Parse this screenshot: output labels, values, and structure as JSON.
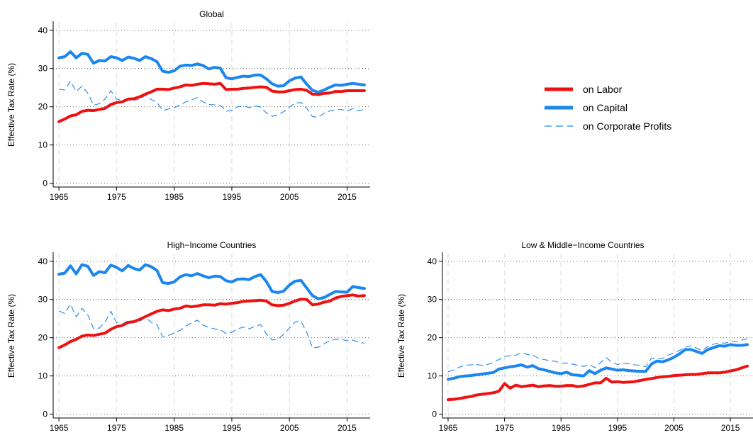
{
  "chart_data": [
    {
      "type": "line",
      "title": "Global",
      "ylabel": "Effective Tax Rate (%)",
      "xlabel": "",
      "xlim": [
        1964,
        2019
      ],
      "ylim": [
        -1,
        42
      ],
      "xticks": [
        1965,
        1975,
        1985,
        1995,
        2005,
        2015
      ],
      "yticks": [
        0,
        10,
        20,
        30,
        40
      ],
      "grid": true,
      "x": [
        1965,
        1966,
        1967,
        1968,
        1969,
        1970,
        1971,
        1972,
        1973,
        1974,
        1975,
        1976,
        1977,
        1978,
        1979,
        1980,
        1981,
        1982,
        1983,
        1984,
        1985,
        1986,
        1987,
        1988,
        1989,
        1990,
        1991,
        1992,
        1993,
        1994,
        1995,
        1996,
        1997,
        1998,
        1999,
        2000,
        2001,
        2002,
        2003,
        2004,
        2005,
        2006,
        2007,
        2008,
        2009,
        2010,
        2011,
        2012,
        2013,
        2014,
        2015,
        2016,
        2017,
        2018
      ],
      "series": [
        {
          "name": "on Labor",
          "color": "#ee1111",
          "style": "solid",
          "values": [
            16.1,
            16.8,
            17.6,
            17.9,
            18.8,
            19.1,
            19.0,
            19.3,
            19.6,
            20.6,
            21.1,
            21.3,
            22.0,
            22.1,
            22.6,
            23.3,
            23.9,
            24.6,
            24.6,
            24.5,
            24.9,
            25.2,
            25.7,
            25.6,
            25.9,
            26.1,
            26.0,
            25.9,
            26.1,
            24.5,
            24.6,
            24.6,
            24.8,
            24.9,
            25.1,
            25.2,
            25.1,
            24.1,
            23.9,
            23.9,
            24.2,
            24.5,
            24.6,
            24.3,
            23.3,
            23.2,
            23.5,
            23.6,
            24.0,
            24.0,
            24.2,
            24.2,
            24.2,
            24.2
          ]
        },
        {
          "name": "on Capital",
          "color": "#1a86ee",
          "style": "solid",
          "values": [
            32.8,
            33.1,
            34.4,
            32.8,
            34.0,
            33.7,
            31.4,
            32.1,
            32.0,
            33.1,
            32.8,
            32.1,
            33.0,
            32.7,
            32.1,
            33.1,
            32.6,
            31.8,
            29.3,
            29.0,
            29.4,
            30.6,
            30.9,
            30.8,
            31.2,
            30.8,
            29.9,
            30.3,
            30.1,
            27.6,
            27.3,
            27.7,
            28.0,
            27.9,
            28.3,
            28.3,
            27.3,
            26.0,
            25.4,
            25.5,
            26.8,
            27.5,
            27.8,
            25.9,
            24.3,
            23.8,
            24.4,
            25.1,
            25.7,
            25.6,
            25.9,
            26.1,
            25.9,
            25.7
          ]
        },
        {
          "name": "on Corporate Profits",
          "color": "#1a86ee",
          "style": "dashed",
          "values": [
            24.6,
            24.4,
            26.7,
            24.0,
            25.4,
            23.6,
            20.4,
            20.8,
            22.0,
            24.2,
            22.0,
            21.6,
            22.3,
            21.7,
            21.9,
            23.0,
            21.9,
            21.2,
            19.0,
            19.4,
            19.8,
            20.4,
            21.3,
            21.8,
            22.4,
            21.3,
            20.6,
            20.5,
            20.4,
            18.8,
            19.1,
            20.0,
            20.2,
            19.8,
            20.2,
            19.9,
            18.4,
            17.5,
            17.9,
            18.7,
            19.9,
            21.0,
            21.1,
            19.6,
            17.4,
            17.3,
            18.3,
            18.9,
            19.2,
            19.3,
            18.9,
            19.5,
            19.0,
            19.3
          ]
        }
      ]
    },
    {
      "type": "line",
      "title": "High−Income Countries",
      "ylabel": "Effective Tax Rate (%)",
      "xlabel": "",
      "xlim": [
        1964,
        2019
      ],
      "ylim": [
        -1,
        42
      ],
      "xticks": [
        1965,
        1975,
        1985,
        1995,
        2005,
        2015
      ],
      "yticks": [
        0,
        10,
        20,
        30,
        40
      ],
      "grid": true,
      "x": [
        1965,
        1966,
        1967,
        1968,
        1969,
        1970,
        1971,
        1972,
        1973,
        1974,
        1975,
        1976,
        1977,
        1978,
        1979,
        1980,
        1981,
        1982,
        1983,
        1984,
        1985,
        1986,
        1987,
        1988,
        1989,
        1990,
        1991,
        1992,
        1993,
        1994,
        1995,
        1996,
        1997,
        1998,
        1999,
        2000,
        2001,
        2002,
        2003,
        2004,
        2005,
        2006,
        2007,
        2008,
        2009,
        2010,
        2011,
        2012,
        2013,
        2014,
        2015,
        2016,
        2017,
        2018
      ],
      "series": [
        {
          "name": "on Labor",
          "color": "#ee1111",
          "style": "solid",
          "values": [
            17.4,
            18.1,
            19.0,
            19.6,
            20.4,
            20.7,
            20.6,
            20.9,
            21.2,
            22.2,
            22.9,
            23.2,
            24.0,
            24.2,
            24.8,
            25.5,
            26.2,
            26.9,
            27.3,
            27.1,
            27.5,
            27.7,
            28.3,
            28.1,
            28.3,
            28.6,
            28.6,
            28.5,
            28.9,
            28.8,
            29.0,
            29.2,
            29.5,
            29.6,
            29.7,
            29.8,
            29.6,
            28.6,
            28.4,
            28.5,
            29.0,
            29.6,
            30.1,
            30.0,
            28.6,
            28.8,
            29.3,
            29.6,
            30.4,
            30.8,
            31.0,
            31.2,
            30.9,
            31.0
          ]
        },
        {
          "name": "on Capital",
          "color": "#1a86ee",
          "style": "solid",
          "values": [
            36.6,
            36.9,
            38.8,
            36.7,
            39.1,
            38.7,
            36.3,
            37.3,
            37.0,
            39.0,
            38.4,
            37.5,
            38.9,
            38.1,
            37.7,
            39.1,
            38.6,
            37.6,
            34.4,
            34.2,
            34.6,
            35.9,
            36.5,
            36.2,
            36.8,
            36.2,
            35.7,
            36.1,
            36.0,
            34.9,
            34.6,
            35.3,
            35.4,
            35.2,
            36.0,
            36.5,
            34.7,
            32.1,
            31.8,
            32.2,
            33.8,
            34.8,
            35.0,
            33.0,
            31.0,
            30.2,
            30.5,
            31.3,
            32.1,
            32.0,
            31.9,
            33.4,
            33.1,
            32.9
          ]
        },
        {
          "name": "on Corporate Profits",
          "color": "#1a86ee",
          "style": "dashed",
          "values": [
            27.0,
            26.3,
            28.8,
            25.5,
            27.7,
            26.0,
            22.4,
            22.5,
            24.1,
            26.9,
            24.0,
            23.6,
            24.5,
            24.0,
            24.2,
            25.4,
            24.0,
            23.4,
            20.3,
            20.6,
            21.3,
            21.9,
            23.0,
            23.9,
            24.6,
            23.3,
            22.7,
            22.3,
            22.1,
            21.1,
            21.4,
            22.3,
            22.8,
            22.3,
            23.0,
            23.4,
            21.0,
            19.4,
            19.6,
            20.9,
            22.5,
            24.1,
            24.3,
            21.4,
            17.4,
            17.5,
            18.4,
            19.2,
            19.6,
            19.6,
            19.2,
            19.4,
            18.8,
            18.6
          ]
        }
      ]
    },
    {
      "type": "line",
      "title": "Low & Middle−Income Countries",
      "ylabel": "Effective Tax Rate (%)",
      "xlabel": "",
      "xlim": [
        1964,
        2019
      ],
      "ylim": [
        -1,
        42
      ],
      "xticks": [
        1965,
        1975,
        1985,
        1995,
        2005,
        2015
      ],
      "yticks": [
        0,
        10,
        20,
        30,
        40
      ],
      "grid": true,
      "x": [
        1965,
        1966,
        1967,
        1968,
        1969,
        1970,
        1971,
        1972,
        1973,
        1974,
        1975,
        1976,
        1977,
        1978,
        1979,
        1980,
        1981,
        1982,
        1983,
        1984,
        1985,
        1986,
        1987,
        1988,
        1989,
        1990,
        1991,
        1992,
        1993,
        1994,
        1995,
        1996,
        1997,
        1998,
        1999,
        2000,
        2001,
        2002,
        2003,
        2004,
        2005,
        2006,
        2007,
        2008,
        2009,
        2010,
        2011,
        2012,
        2013,
        2014,
        2015,
        2016,
        2017,
        2018
      ],
      "series": [
        {
          "name": "on Labor",
          "color": "#ee1111",
          "style": "solid",
          "values": [
            3.8,
            3.9,
            4.1,
            4.4,
            4.6,
            5.0,
            5.2,
            5.4,
            5.6,
            6.0,
            8.0,
            6.8,
            7.6,
            7.2,
            7.4,
            7.6,
            7.2,
            7.4,
            7.5,
            7.3,
            7.3,
            7.5,
            7.5,
            7.2,
            7.4,
            7.8,
            8.2,
            8.2,
            9.4,
            8.4,
            8.5,
            8.3,
            8.4,
            8.5,
            8.8,
            9.1,
            9.3,
            9.6,
            9.8,
            9.9,
            10.1,
            10.2,
            10.3,
            10.4,
            10.4,
            10.6,
            10.8,
            10.8,
            10.8,
            11.0,
            11.3,
            11.6,
            12.1,
            12.6
          ]
        },
        {
          "name": "on Capital",
          "color": "#1a86ee",
          "style": "solid",
          "values": [
            9.1,
            9.4,
            9.8,
            10.0,
            10.1,
            10.3,
            10.5,
            10.7,
            10.9,
            11.8,
            12.1,
            12.4,
            12.6,
            12.9,
            12.3,
            12.7,
            11.9,
            11.6,
            11.2,
            10.8,
            10.6,
            11.0,
            10.3,
            10.2,
            10.0,
            11.4,
            10.6,
            11.5,
            12.1,
            11.8,
            11.5,
            11.6,
            11.4,
            11.3,
            11.2,
            11.2,
            13.1,
            13.9,
            13.7,
            14.2,
            14.9,
            15.8,
            16.9,
            16.9,
            16.4,
            15.9,
            16.9,
            17.4,
            17.9,
            17.8,
            18.2,
            18.0,
            18.0,
            18.2
          ]
        },
        {
          "name": "on Corporate Profits",
          "color": "#1a86ee",
          "style": "dashed",
          "values": [
            11.1,
            11.6,
            12.3,
            12.8,
            12.9,
            13.0,
            12.8,
            13.0,
            13.5,
            14.3,
            15.1,
            15.3,
            15.4,
            16.1,
            15.6,
            15.5,
            14.6,
            14.3,
            14.0,
            13.8,
            13.3,
            13.4,
            13.1,
            12.8,
            12.5,
            13.0,
            12.2,
            13.5,
            14.8,
            13.6,
            13.0,
            13.4,
            13.2,
            12.9,
            12.8,
            12.4,
            14.6,
            14.6,
            14.6,
            15.4,
            16.1,
            16.7,
            17.5,
            17.9,
            17.3,
            16.6,
            17.7,
            18.3,
            18.7,
            18.6,
            18.9,
            19.0,
            19.4,
            19.7
          ]
        }
      ]
    }
  ],
  "legend": {
    "items": [
      {
        "label": "on Labor",
        "color": "#ee1111",
        "style": "solid"
      },
      {
        "label": "on Capital",
        "color": "#1a86ee",
        "style": "solid"
      },
      {
        "label": "on Corporate Profits",
        "color": "#1a86ee",
        "style": "dashed"
      }
    ],
    "placement": "right of the top panel"
  }
}
